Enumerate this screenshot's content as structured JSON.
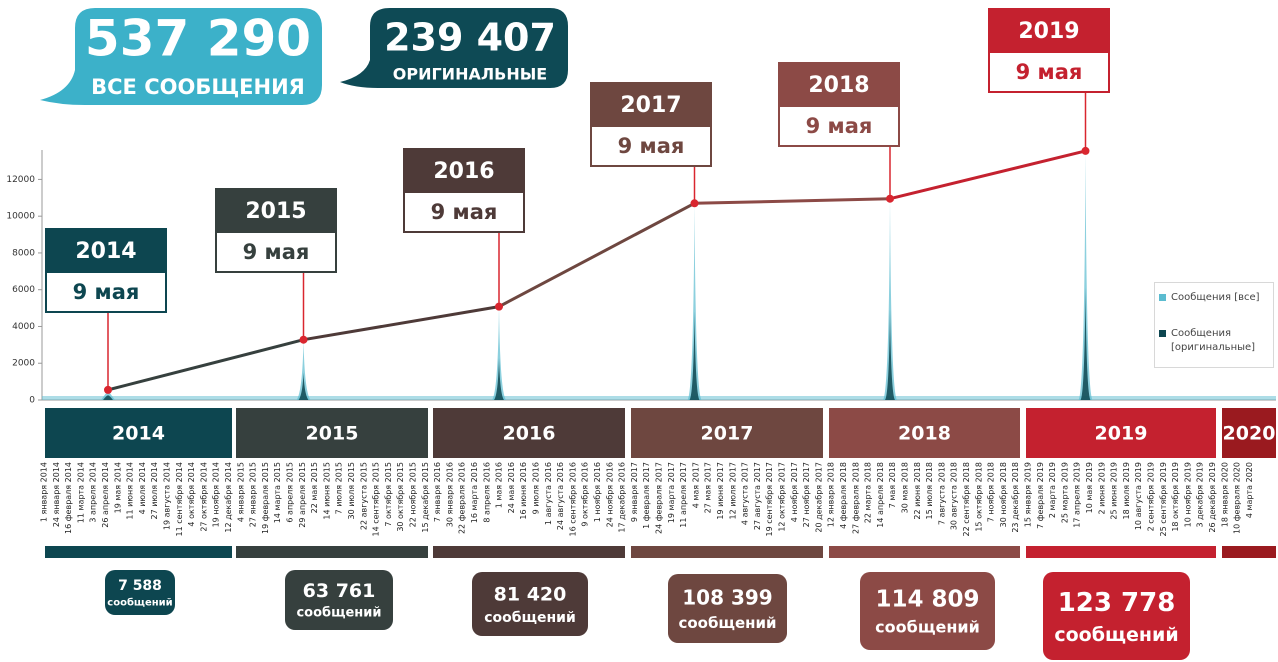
{
  "header": {
    "total": {
      "value": "537 290",
      "label": "ВСЕ СООБЩЕНИЯ",
      "color": "#3cb1c9"
    },
    "original": {
      "value": "239 407",
      "label": "ОРИГИНАЛЬНЫЕ",
      "color": "#0e4a55"
    }
  },
  "chart_data": {
    "type": "line",
    "categories": [
      "2014",
      "2015",
      "2016",
      "2017",
      "2018",
      "2019"
    ],
    "point_labels": [
      "9 мая",
      "9 мая",
      "9 мая",
      "9 мая",
      "9 мая",
      "9 мая"
    ],
    "values": [
      550,
      3280,
      5080,
      10700,
      10950,
      13550
    ],
    "colors": [
      "#0d4650",
      "#36403e",
      "#4e3a38",
      "#6e4740",
      "#8c4a46",
      "#c4212f"
    ],
    "ylim": [
      0,
      13600
    ],
    "yticks": [
      0,
      2000,
      4000,
      6000,
      8000,
      10000,
      12000
    ],
    "legend": [
      {
        "name": "Сообщения [все]",
        "color": "#5bbcd0"
      },
      {
        "name": "Сообщения [оригинальные]",
        "color": "#0d4650"
      }
    ]
  },
  "timeline": {
    "years": [
      "2014",
      "2015",
      "2016",
      "2017",
      "2018",
      "2019",
      "2020"
    ],
    "colors": [
      "#0d4650",
      "#36403e",
      "#4e3a38",
      "#6e4740",
      "#8c4a46",
      "#c4212f",
      "#9a1a1f"
    ],
    "counts": [
      "7 588",
      "63 761",
      "81 420",
      "108 399",
      "114 809",
      "123 778"
    ],
    "unit": "сообщений"
  },
  "dates": [
    "1 января 2014",
    "24 января 2014",
    "16 февраля 2014",
    "11 марта 2014",
    "3 апреля 2014",
    "26 апреля 2014",
    "19 мая 2014",
    "11 июня 2014",
    "4 июля 2014",
    "27 июля 2014",
    "19 августа 2014",
    "11 сентября 2014",
    "4 октября 2014",
    "27 октября 2014",
    "19 ноября 2014",
    "12 декабря 2014",
    "4 января 2015",
    "27 января 2015",
    "19 февраля 2015",
    "14 марта 2015",
    "6 апреля 2015",
    "29 апреля 2015",
    "22 мая 2015",
    "14 июня 2015",
    "7 июля 2015",
    "30 июля 2015",
    "22 августа 2015",
    "14 сентября 2015",
    "7 октября 2015",
    "30 октября 2015",
    "22 ноября 2015",
    "15 декабря 2015",
    "7 января 2016",
    "30 января 2016",
    "22 февраля 2016",
    "16 марта 2016",
    "8 апреля 2016",
    "1 мая 2016",
    "24 мая 2016",
    "16 июня 2016",
    "9 июля 2016",
    "1 августа 2016",
    "24 августа 2016",
    "16 сентября 2016",
    "9 октября 2016",
    "1 ноября 2016",
    "24 ноября 2016",
    "17 декабря 2016",
    "9 января 2017",
    "1 февраля 2017",
    "24 февраля 2017",
    "19 марта 2017",
    "11 апреля 2017",
    "4 мая 2017",
    "27 мая 2017",
    "19 июня 2017",
    "12 июля 2017",
    "4 августа 2017",
    "27 августа 2017",
    "19 сентября 2017",
    "12 октября 2017",
    "4 ноября 2017",
    "27 ноября 2017",
    "20 декабря 2017",
    "12 января 2018",
    "4 февраля 2018",
    "27 февраля 2018",
    "22 марта 2018",
    "14 апреля 2018",
    "7 мая 2018",
    "30 мая 2018",
    "22 июня 2018",
    "15 июля 2018",
    "7 августа 2018",
    "30 августа 2018",
    "22 сентября 2018",
    "15 октября 2018",
    "7 ноября 2018",
    "30 ноября 2018",
    "23 декабря 2018",
    "15 января 2019",
    "7 февраля 2019",
    "2 марта 2019",
    "25 марта 2019",
    "17 апреля 2019",
    "10 мая 2019",
    "2 июня 2019",
    "25 июня 2019",
    "18 июля 2019",
    "10 августа 2019",
    "2 сентября 2019",
    "25 сентября 2019",
    "18 октября 2019",
    "10 ноября 2019",
    "3 декабря 2019",
    "26 декабря 2019",
    "18 января 2020",
    "10 февраля 2020",
    "4 марта 2020"
  ]
}
